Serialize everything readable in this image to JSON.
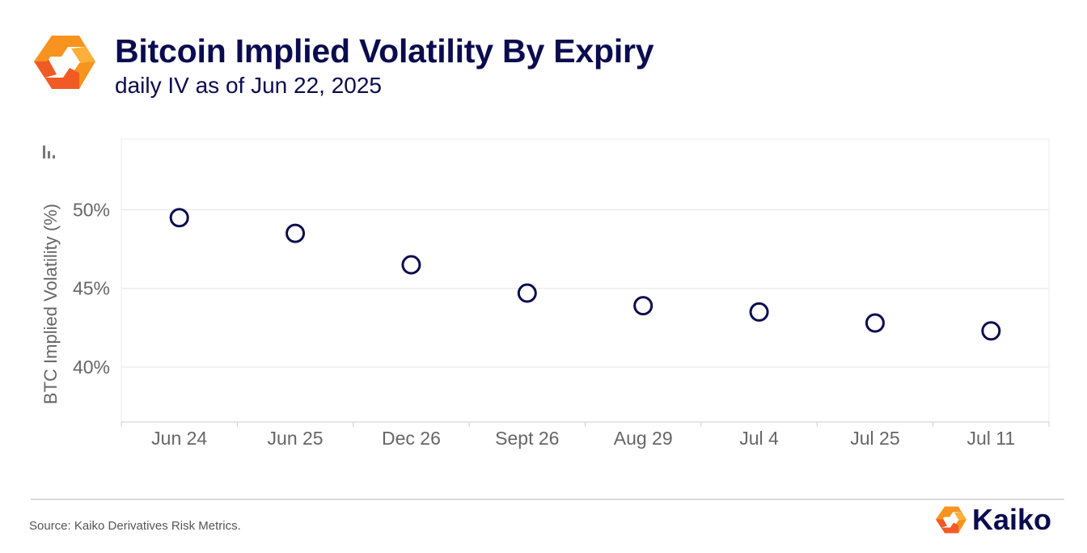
{
  "header": {
    "title": "Bitcoin Implied Volatility By Expiry",
    "subtitle": "daily IV as of Jun 22, 2025",
    "logo_icon": "kaiko-logo-icon"
  },
  "colors": {
    "title": "#0b0b4f",
    "marker": "#0b0b4f",
    "logo_orange": "#f7931e",
    "logo_orange_dark": "#f15a24",
    "grid": "#e6e6e6",
    "axis_text": "#666666"
  },
  "chart_data": {
    "type": "scatter",
    "title": "",
    "xlabel": "",
    "ylabel": "BTC Implied Volatility (%)",
    "categories": [
      "Jun 24",
      "Jun 25",
      "Dec 26",
      "Sept 26",
      "Aug 29",
      "Jul 4",
      "Jul 25",
      "Jul 11"
    ],
    "values": [
      49.5,
      48.5,
      46.5,
      44.7,
      43.9,
      43.5,
      42.8,
      42.3
    ],
    "ylim": [
      36.5,
      54.5
    ],
    "yticks": [
      40,
      45,
      50
    ],
    "ytick_labels": [
      "40%",
      "45%",
      "50%"
    ],
    "grid": true,
    "marker": "hollow-circle",
    "legend": "none"
  },
  "footer": {
    "source": "Source: Kaiko Derivatives Risk Metrics.",
    "brand": "Kaiko",
    "brand_icon": "kaiko-logo-icon"
  }
}
